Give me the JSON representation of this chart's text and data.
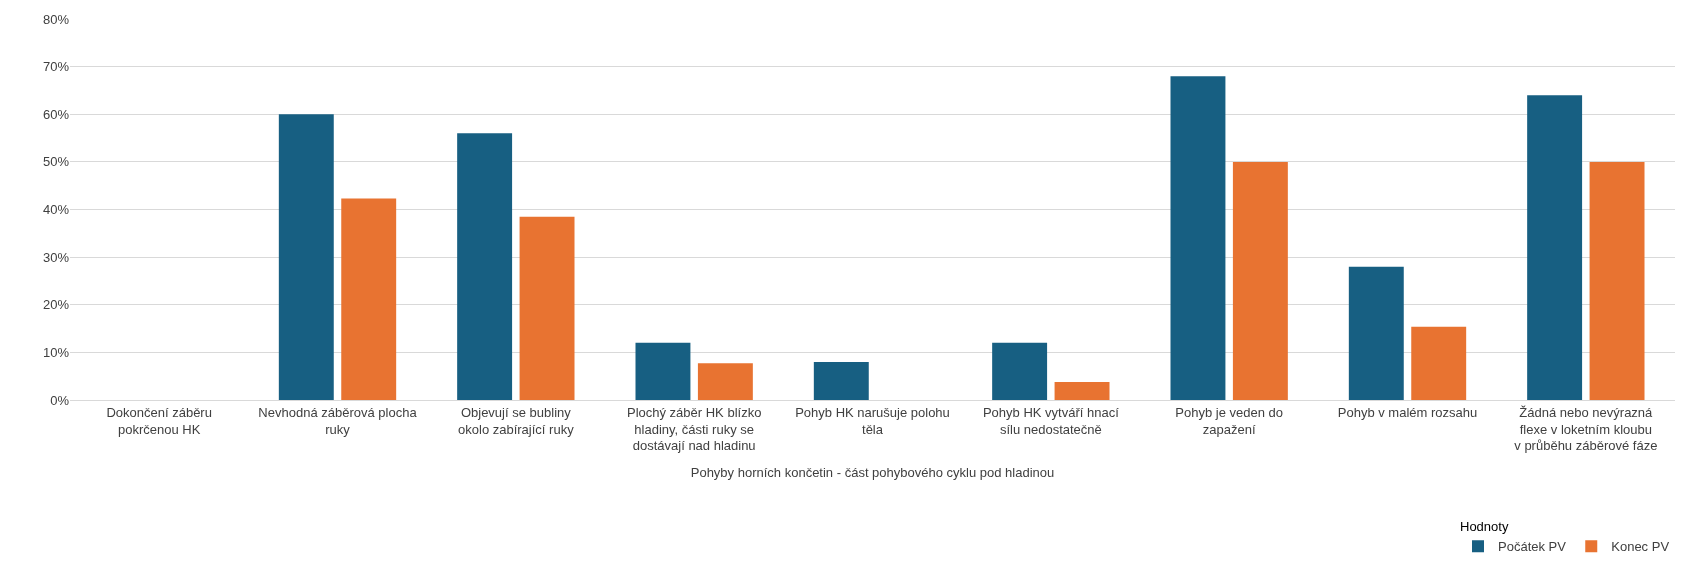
{
  "chart_data": {
    "type": "bar",
    "categories": [
      "Dokončení záběru pokrčenou HK",
      "Nevhodná záběrová plocha ruky",
      "Objevují se bubliny okolo zabírající ruky",
      "Plochý záběr HK blízko hladiny, části ruky se dostávají nad hladinu",
      "Pohyb HK narušuje polohu těla",
      "Pohyb HK vytváří hnací sílu nedostatečně",
      "Pohyb je veden do zapažení",
      "Pohyb v malém rozsahu",
      "Žádná nebo nevýrazná flexe v loketním kloubu v průběhu záběrové fáze"
    ],
    "series": [
      {
        "name": "Počátek PV",
        "color": "#175f82",
        "values": [
          0,
          60,
          56,
          12,
          8,
          12,
          68,
          28,
          64
        ]
      },
      {
        "name": "Konec PV",
        "color": "#e87331",
        "values": [
          0,
          42.3,
          38.5,
          7.7,
          0,
          3.8,
          50,
          15.4,
          50
        ]
      }
    ],
    "xlabel": "Pohyby horních končetin - část pohybového cyklu pod hladinou",
    "legend_title": "Hodnoty",
    "ylim": [
      0,
      80
    ],
    "yticks": [
      {
        "value": 0,
        "label": "0%"
      },
      {
        "value": 10,
        "label": "10%"
      },
      {
        "value": 20,
        "label": "20%"
      },
      {
        "value": 30,
        "label": "30%"
      },
      {
        "value": 40,
        "label": "40%"
      },
      {
        "value": 50,
        "label": "50%"
      },
      {
        "value": 60,
        "label": "60%"
      },
      {
        "value": 70,
        "label": "70%"
      },
      {
        "value": 80,
        "label": "80%"
      }
    ],
    "grid": "y",
    "legend": "bottom right"
  }
}
